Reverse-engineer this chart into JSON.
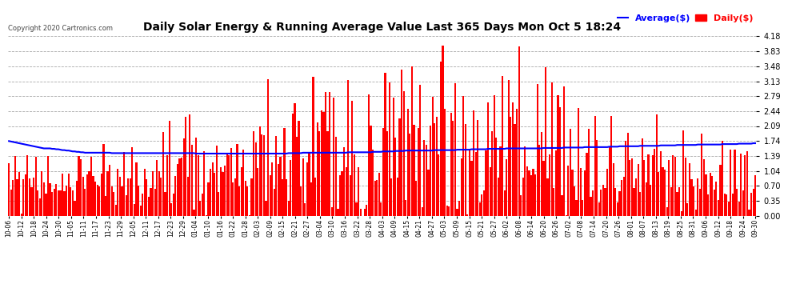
{
  "title": "Daily Solar Energy & Running Average Value Last 365 Days Mon Oct 5 18:24",
  "copyright": "Copyright 2020 Cartronics.com",
  "legend_average": "Average($)",
  "legend_daily": "Daily($)",
  "yticks": [
    0.0,
    0.35,
    0.7,
    1.04,
    1.39,
    1.74,
    2.09,
    2.44,
    2.79,
    3.13,
    3.48,
    3.83,
    4.18
  ],
  "bar_color": "#ff0000",
  "avg_color": "#0000ff",
  "bg_color": "#ffffff",
  "grid_color": "#aaaaaa",
  "title_color": "#000000",
  "copyright_color": "#444444",
  "ylim": [
    0.0,
    4.18
  ],
  "avg_line_points": [
    1.74,
    1.73,
    1.72,
    1.71,
    1.7,
    1.69,
    1.68,
    1.67,
    1.66,
    1.65,
    1.64,
    1.63,
    1.62,
    1.61,
    1.6,
    1.59,
    1.58,
    1.57,
    1.57,
    1.57,
    1.57,
    1.56,
    1.56,
    1.55,
    1.55,
    1.54,
    1.53,
    1.53,
    1.52,
    1.52,
    1.51,
    1.5,
    1.5,
    1.49,
    1.49,
    1.48,
    1.48,
    1.47,
    1.47,
    1.47,
    1.47,
    1.47,
    1.47,
    1.47,
    1.47,
    1.47,
    1.47,
    1.47,
    1.47,
    1.47,
    1.46,
    1.46,
    1.46,
    1.46,
    1.46,
    1.46,
    1.46,
    1.46,
    1.46,
    1.46,
    1.46,
    1.46,
    1.46,
    1.46,
    1.46,
    1.46,
    1.46,
    1.46,
    1.46,
    1.46,
    1.46,
    1.46,
    1.46,
    1.46,
    1.46,
    1.46,
    1.46,
    1.46,
    1.46,
    1.46,
    1.46,
    1.46,
    1.46,
    1.46,
    1.46,
    1.46,
    1.46,
    1.46,
    1.46,
    1.46,
    1.46,
    1.45,
    1.45,
    1.45,
    1.45,
    1.45,
    1.45,
    1.45,
    1.45,
    1.45,
    1.45,
    1.45,
    1.45,
    1.45,
    1.45,
    1.45,
    1.45,
    1.45,
    1.45,
    1.45,
    1.45,
    1.45,
    1.45,
    1.45,
    1.45,
    1.45,
    1.45,
    1.45,
    1.45,
    1.45,
    1.45,
    1.45,
    1.45,
    1.45,
    1.45,
    1.45,
    1.45,
    1.45,
    1.45,
    1.45,
    1.45,
    1.45,
    1.45,
    1.45,
    1.45,
    1.45,
    1.46,
    1.46,
    1.46,
    1.46,
    1.46,
    1.46,
    1.46,
    1.47,
    1.47,
    1.47,
    1.47,
    1.47,
    1.47,
    1.47,
    1.47,
    1.47,
    1.47,
    1.47,
    1.47,
    1.47,
    1.47,
    1.47,
    1.47,
    1.47,
    1.47,
    1.47,
    1.47,
    1.47,
    1.47,
    1.48,
    1.48,
    1.48,
    1.48,
    1.48,
    1.48,
    1.48,
    1.48,
    1.48,
    1.48,
    1.48,
    1.48,
    1.49,
    1.49,
    1.49,
    1.49,
    1.49,
    1.5,
    1.5,
    1.5,
    1.5,
    1.5,
    1.5,
    1.51,
    1.51,
    1.51,
    1.51,
    1.51,
    1.52,
    1.52,
    1.52,
    1.52,
    1.52,
    1.52,
    1.52,
    1.52,
    1.52,
    1.52,
    1.52,
    1.52,
    1.52,
    1.52,
    1.53,
    1.53,
    1.53,
    1.53,
    1.53,
    1.53,
    1.53,
    1.53,
    1.53,
    1.53,
    1.53,
    1.54,
    1.54,
    1.54,
    1.54,
    1.54,
    1.54,
    1.54,
    1.55,
    1.55,
    1.55,
    1.55,
    1.55,
    1.55,
    1.55,
    1.55,
    1.56,
    1.56,
    1.56,
    1.56,
    1.56,
    1.56,
    1.56,
    1.56,
    1.56,
    1.57,
    1.57,
    1.57,
    1.57,
    1.57,
    1.57,
    1.57,
    1.57,
    1.57,
    1.57,
    1.57,
    1.57,
    1.57,
    1.57,
    1.57,
    1.57,
    1.57,
    1.57,
    1.58,
    1.58,
    1.58,
    1.58,
    1.58,
    1.58,
    1.58,
    1.58,
    1.58,
    1.58,
    1.59,
    1.59,
    1.59,
    1.59,
    1.59,
    1.59,
    1.59,
    1.59,
    1.59,
    1.59,
    1.6,
    1.6,
    1.6,
    1.6,
    1.6,
    1.6,
    1.6,
    1.6,
    1.6,
    1.6,
    1.6,
    1.6,
    1.61,
    1.61,
    1.61,
    1.61,
    1.61,
    1.62,
    1.62,
    1.62,
    1.62,
    1.62,
    1.62,
    1.62,
    1.62,
    1.62,
    1.62,
    1.63,
    1.63,
    1.63,
    1.63,
    1.63,
    1.63,
    1.63,
    1.63,
    1.63,
    1.63,
    1.64,
    1.64,
    1.64,
    1.64,
    1.64,
    1.64,
    1.64,
    1.64,
    1.65,
    1.65,
    1.65,
    1.65,
    1.65,
    1.65,
    1.65,
    1.65,
    1.65,
    1.65,
    1.66,
    1.66,
    1.66,
    1.66,
    1.66,
    1.66,
    1.66,
    1.66,
    1.66,
    1.66,
    1.66,
    1.66,
    1.67,
    1.67,
    1.67,
    1.67,
    1.67,
    1.67,
    1.67,
    1.67,
    1.68,
    1.68,
    1.68,
    1.68,
    1.68,
    1.68,
    1.68,
    1.69,
    1.69
  ],
  "daily_seed": 12345,
  "xtick_labels": [
    "10-06",
    "10-12",
    "10-18",
    "10-24",
    "10-30",
    "11-05",
    "11-11",
    "11-17",
    "11-23",
    "11-29",
    "12-05",
    "12-11",
    "12-17",
    "12-23",
    "12-29",
    "01-04",
    "01-10",
    "01-16",
    "01-22",
    "01-28",
    "02-03",
    "02-09",
    "02-15",
    "02-21",
    "02-27",
    "03-04",
    "03-10",
    "03-16",
    "03-22",
    "03-28",
    "04-03",
    "04-09",
    "04-15",
    "04-21",
    "04-27",
    "05-03",
    "05-09",
    "05-15",
    "05-21",
    "05-27",
    "06-02",
    "06-08",
    "06-14",
    "06-20",
    "06-26",
    "07-02",
    "07-08",
    "07-14",
    "07-20",
    "07-26",
    "08-01",
    "08-07",
    "08-13",
    "08-19",
    "08-25",
    "08-31",
    "09-06",
    "09-12",
    "09-18",
    "09-24",
    "09-30"
  ]
}
